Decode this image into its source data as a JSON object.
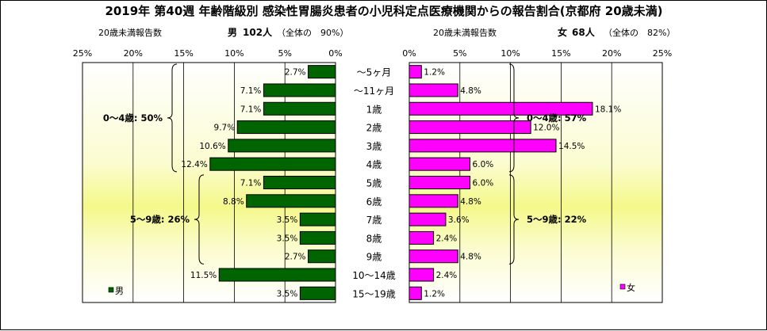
{
  "title": "2019年 第40週 年齢階級別 感染性胃腸炎患者の小児科定点医療機関からの報告割合(京都府 20歳未満)",
  "male_header": {
    "label": "20歳未満報告数",
    "sex": "男",
    "count": "102人",
    "overall": "（全体の　90%）"
  },
  "female_header": {
    "label": "20歳未満報告数",
    "sex": "女",
    "count": "68人",
    "overall": "（全体の　82%）"
  },
  "chart_data": {
    "type": "bar",
    "orientation": "horizontal",
    "categories": [
      "～5ヶ月",
      "～11ヶ月",
      "1歳",
      "2歳",
      "3歳",
      "4歳",
      "5歳",
      "6歳",
      "7歳",
      "8歳",
      "9歳",
      "10～14歳",
      "15～19歳"
    ],
    "axis_ticks": [
      "25%",
      "20%",
      "15%",
      "10%",
      "5%",
      "0%"
    ],
    "axis_ticks_right": [
      "0%",
      "5%",
      "10%",
      "15%",
      "20%",
      "25%"
    ],
    "xlim": [
      0,
      25
    ],
    "series": [
      {
        "name": "男",
        "color": "#006400",
        "values": [
          2.7,
          7.1,
          7.1,
          9.7,
          10.6,
          12.4,
          7.1,
          8.8,
          3.5,
          3.5,
          2.7,
          11.5,
          3.5
        ],
        "labels": [
          "2.7%",
          "7.1%",
          "7.1%",
          "9.7%",
          "10.6%",
          "12.4%",
          "7.1%",
          "8.8%",
          "3.5%",
          "3.5%",
          "2.7%",
          "11.5%",
          "3.5%"
        ]
      },
      {
        "name": "女",
        "color": "#ff00ff",
        "values": [
          1.2,
          4.8,
          18.1,
          12.0,
          14.5,
          6.0,
          6.0,
          4.8,
          3.6,
          2.4,
          4.8,
          2.4,
          1.2
        ],
        "labels": [
          "1.2%",
          "4.8%",
          "18.1%",
          "12.0%",
          "14.5%",
          "6.0%",
          "6.0%",
          "4.8%",
          "3.6%",
          "2.4%",
          "4.8%",
          "2.4%",
          "1.2%"
        ]
      }
    ],
    "group_annotations": {
      "male": [
        {
          "label": "0～4歳: 50%",
          "from": 0,
          "to": 5
        },
        {
          "label": "5～9歳: 26%",
          "from": 6,
          "to": 10
        }
      ],
      "female": [
        {
          "label": "0～4歳: 57%",
          "from": 0,
          "to": 5
        },
        {
          "label": "5～9歳: 22%",
          "from": 6,
          "to": 10
        }
      ]
    },
    "grid": true,
    "legend": "bottom-left (男), bottom-right (女)"
  }
}
